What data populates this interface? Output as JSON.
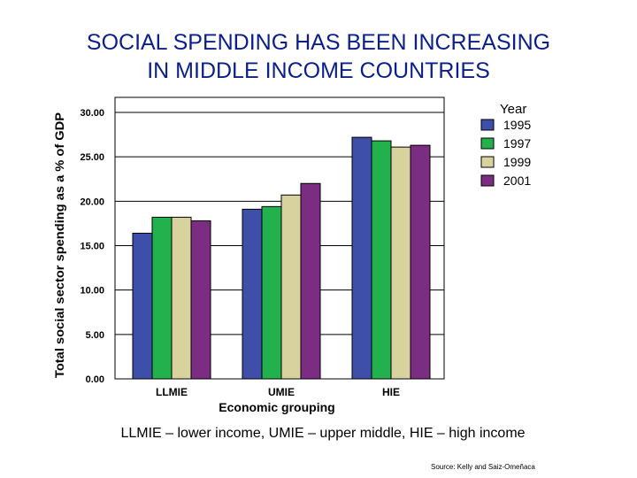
{
  "slide": {
    "title_line1": "SOCIAL SPENDING HAS BEEN INCREASING",
    "title_line2": "IN MIDDLE INCOME COUNTRIES",
    "footnote": "LLMIE – lower income, UMIE – upper middle, HIE – high income",
    "source": "Source: Kelly and Saiz-Omeñaca"
  },
  "chart_data": {
    "type": "bar",
    "title": "",
    "xlabel": "Economic grouping",
    "ylabel": "Total social sector spending as a % of GDP",
    "ylim": [
      0,
      30
    ],
    "yticks": [
      "0.00",
      "5.00",
      "10.00",
      "15.00",
      "20.00",
      "25.00",
      "30.00"
    ],
    "grid": "horizontal",
    "legend_title": "Year",
    "legend_position": "right",
    "categories": [
      "LLMIE",
      "UMIE",
      "HIE"
    ],
    "series": [
      {
        "name": "1995",
        "color": "#3d4fa8",
        "values": [
          16.4,
          19.1,
          27.2
        ]
      },
      {
        "name": "1997",
        "color": "#22b14c",
        "values": [
          18.2,
          19.4,
          26.8
        ]
      },
      {
        "name": "1999",
        "color": "#d8d39e",
        "values": [
          18.2,
          20.7,
          26.1
        ]
      },
      {
        "name": "2001",
        "color": "#7b2d82",
        "values": [
          17.8,
          22.0,
          26.3
        ]
      }
    ]
  }
}
